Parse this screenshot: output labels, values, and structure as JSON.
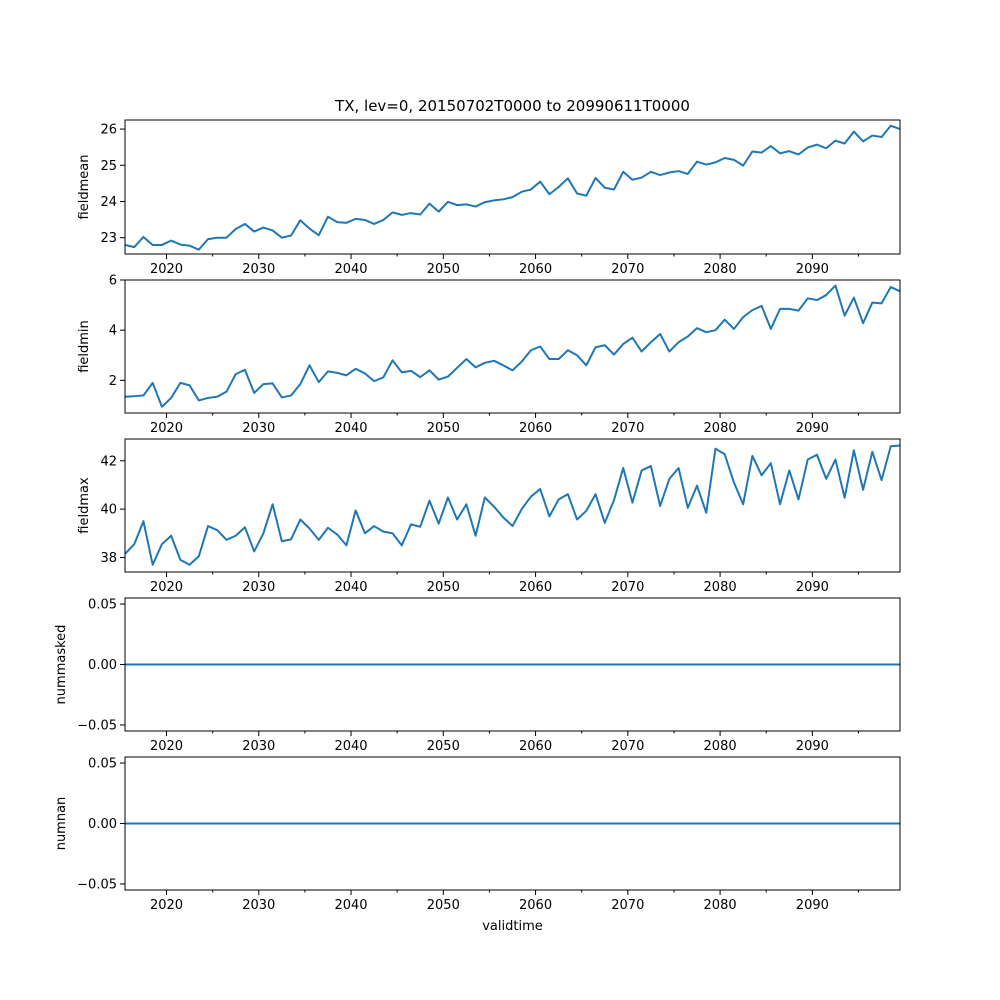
{
  "figure": {
    "title": "TX, lev=0, 20150702T0000 to 20990611T0000",
    "xlabel": "validtime",
    "line_color": "#1f77b4"
  },
  "chart_data": [
    {
      "type": "line",
      "ylabel": "fieldmean",
      "xlim": [
        2015.5,
        2099.5
      ],
      "ylim": [
        22.55,
        26.25
      ],
      "x_ticks": [
        2020,
        2030,
        2040,
        2050,
        2060,
        2070,
        2080,
        2090
      ],
      "x_tick_labels": [
        "2020",
        "2030",
        "2040",
        "2050",
        "2060",
        "2070",
        "2080",
        "2090"
      ],
      "y_ticks": [
        23,
        24,
        25,
        26
      ],
      "y_tick_labels": [
        "23",
        "24",
        "25",
        "26"
      ],
      "x_start": 2015.5,
      "x_step": 1,
      "values": [
        22.8,
        22.74,
        23.02,
        22.8,
        22.8,
        22.92,
        22.81,
        22.78,
        22.67,
        22.96,
        23.0,
        23.0,
        23.24,
        23.38,
        23.17,
        23.28,
        23.2,
        23.0,
        23.06,
        23.48,
        23.25,
        23.07,
        23.58,
        23.43,
        23.41,
        23.52,
        23.49,
        23.38,
        23.49,
        23.7,
        23.63,
        23.68,
        23.64,
        23.94,
        23.72,
        23.99,
        23.9,
        23.92,
        23.86,
        23.98,
        24.03,
        24.06,
        24.12,
        24.27,
        24.33,
        24.55,
        24.2,
        24.4,
        24.64,
        24.22,
        24.16,
        24.65,
        24.38,
        24.33,
        24.82,
        24.6,
        24.66,
        24.82,
        24.73,
        24.8,
        24.84,
        24.76,
        25.1,
        25.02,
        25.08,
        25.2,
        25.15,
        24.99,
        25.38,
        25.35,
        25.53,
        25.33,
        25.39,
        25.3,
        25.49,
        25.57,
        25.47,
        25.68,
        25.6,
        25.93,
        25.66,
        25.82,
        25.78,
        26.09,
        26.0
      ]
    },
    {
      "type": "line",
      "ylabel": "fieldmin",
      "xlim": [
        2015.5,
        2099.5
      ],
      "ylim": [
        0.7,
        6.0
      ],
      "x_ticks": [
        2020,
        2030,
        2040,
        2050,
        2060,
        2070,
        2080,
        2090
      ],
      "x_tick_labels": [
        "2020",
        "2030",
        "2040",
        "2050",
        "2060",
        "2070",
        "2080",
        "2090"
      ],
      "y_ticks": [
        2,
        4,
        6
      ],
      "y_tick_labels": [
        "2",
        "4",
        "6"
      ],
      "x_start": 2015.5,
      "x_step": 1,
      "values": [
        1.35,
        1.37,
        1.4,
        1.9,
        0.95,
        1.3,
        1.9,
        1.8,
        1.2,
        1.3,
        1.35,
        1.55,
        2.25,
        2.42,
        1.5,
        1.85,
        1.88,
        1.32,
        1.4,
        1.85,
        2.6,
        1.93,
        2.36,
        2.3,
        2.2,
        2.46,
        2.28,
        1.97,
        2.12,
        2.8,
        2.32,
        2.38,
        2.13,
        2.4,
        2.03,
        2.15,
        2.5,
        2.85,
        2.52,
        2.7,
        2.78,
        2.6,
        2.4,
        2.75,
        3.2,
        3.35,
        2.85,
        2.85,
        3.2,
        3.0,
        2.6,
        3.32,
        3.4,
        3.03,
        3.45,
        3.7,
        3.15,
        3.52,
        3.85,
        3.15,
        3.52,
        3.75,
        4.08,
        3.92,
        4.0,
        4.42,
        4.05,
        4.52,
        4.8,
        4.97,
        4.05,
        4.85,
        4.85,
        4.78,
        5.27,
        5.2,
        5.4,
        5.78,
        4.58,
        5.3,
        4.28,
        5.1,
        5.07,
        5.72,
        5.55
      ]
    },
    {
      "type": "line",
      "ylabel": "fieldmax",
      "xlim": [
        2015.5,
        2099.5
      ],
      "ylim": [
        37.4,
        42.9
      ],
      "x_ticks": [
        2020,
        2030,
        2040,
        2050,
        2060,
        2070,
        2080,
        2090
      ],
      "x_tick_labels": [
        "2020",
        "2030",
        "2040",
        "2050",
        "2060",
        "2070",
        "2080",
        "2090"
      ],
      "y_ticks": [
        38,
        40,
        42
      ],
      "y_tick_labels": [
        "38",
        "40",
        "42"
      ],
      "x_start": 2015.5,
      "x_step": 1,
      "values": [
        38.15,
        38.55,
        39.5,
        37.7,
        38.55,
        38.9,
        37.9,
        37.7,
        38.05,
        39.3,
        39.13,
        38.73,
        38.9,
        39.25,
        38.25,
        39.0,
        40.2,
        38.67,
        38.75,
        39.57,
        39.2,
        38.73,
        39.23,
        38.95,
        38.5,
        39.95,
        39.0,
        39.3,
        39.07,
        39.0,
        38.5,
        39.37,
        39.27,
        40.35,
        39.4,
        40.48,
        39.57,
        40.2,
        38.9,
        40.48,
        40.1,
        39.66,
        39.3,
        40.0,
        40.52,
        40.83,
        39.7,
        40.4,
        40.62,
        39.57,
        39.93,
        40.62,
        39.43,
        40.37,
        41.7,
        40.27,
        41.6,
        41.78,
        40.13,
        41.25,
        41.7,
        40.05,
        40.97,
        39.85,
        42.5,
        42.27,
        41.1,
        40.2,
        42.2,
        41.4,
        41.9,
        40.2,
        41.6,
        40.4,
        42.05,
        42.25,
        41.25,
        42.05,
        40.47,
        42.43,
        40.8,
        42.37,
        41.2,
        42.6,
        42.63
      ]
    },
    {
      "type": "line",
      "ylabel": "nummasked",
      "xlim": [
        2015.5,
        2099.5
      ],
      "ylim": [
        -0.055,
        0.055
      ],
      "x_ticks": [
        2020,
        2030,
        2040,
        2050,
        2060,
        2070,
        2080,
        2090
      ],
      "x_tick_labels": [
        "2020",
        "2030",
        "2040",
        "2050",
        "2060",
        "2070",
        "2080",
        "2090"
      ],
      "y_ticks": [
        -0.05,
        0.0,
        0.05
      ],
      "y_tick_labels": [
        "−0.05",
        "0.00",
        "0.05"
      ],
      "x": [
        2015.5,
        2099.5
      ],
      "y": [
        0.0,
        0.0
      ]
    },
    {
      "type": "line",
      "ylabel": "numnan",
      "xlim": [
        2015.5,
        2099.5
      ],
      "ylim": [
        -0.055,
        0.055
      ],
      "x_ticks": [
        2020,
        2030,
        2040,
        2050,
        2060,
        2070,
        2080,
        2090
      ],
      "x_tick_labels": [
        "2020",
        "2030",
        "2040",
        "2050",
        "2060",
        "2070",
        "2080",
        "2090"
      ],
      "y_ticks": [
        -0.05,
        0.0,
        0.05
      ],
      "y_tick_labels": [
        "−0.05",
        "0.00",
        "0.05"
      ],
      "x": [
        2015.5,
        2099.5
      ],
      "y": [
        0.0,
        0.0
      ]
    }
  ]
}
